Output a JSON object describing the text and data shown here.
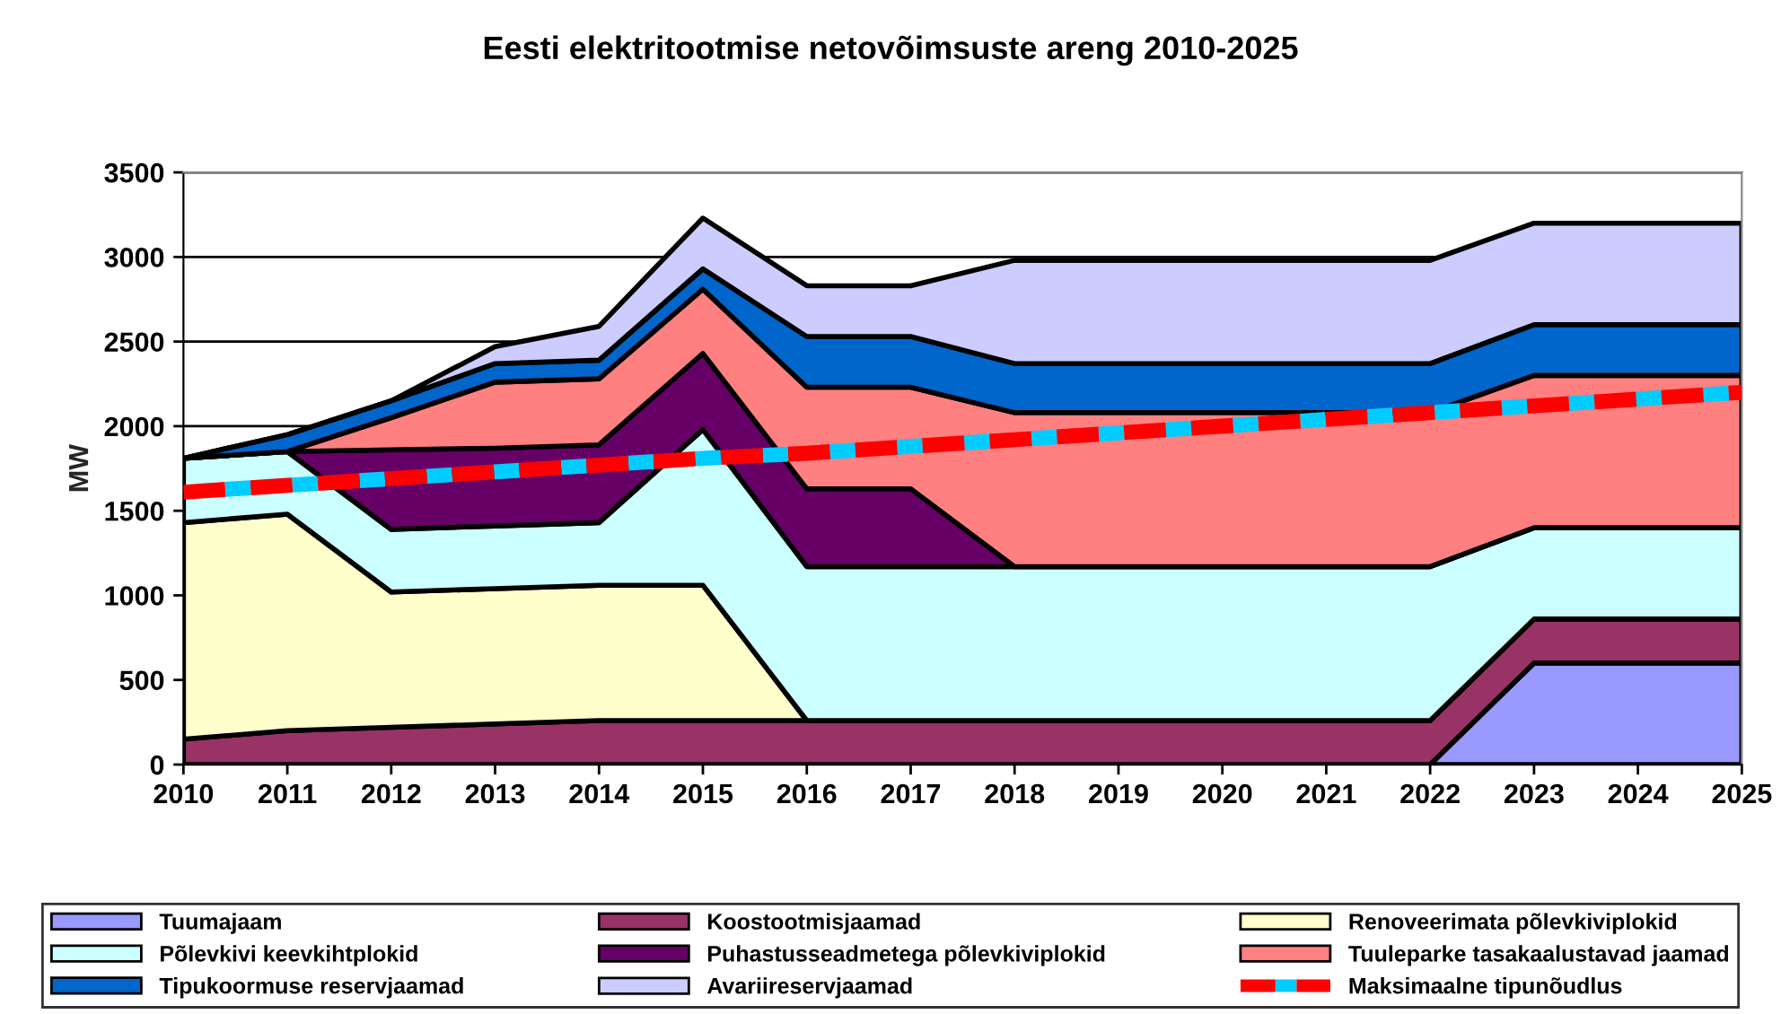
{
  "chart_data": {
    "type": "area",
    "stacked": true,
    "title": "Eesti elektritootmise netovõimsuste areng 2010-2025",
    "ylabel": "MW",
    "x": [
      2010,
      2011,
      2012,
      2013,
      2014,
      2015,
      2016,
      2017,
      2018,
      2019,
      2020,
      2021,
      2022,
      2023,
      2024,
      2025
    ],
    "xlim": [
      2010,
      2025
    ],
    "xticks": [
      2010,
      2011,
      2012,
      2013,
      2014,
      2015,
      2016,
      2017,
      2018,
      2019,
      2020,
      2021,
      2022,
      2023,
      2024,
      2025
    ],
    "ylim": [
      0,
      3500
    ],
    "yticks": [
      0,
      500,
      1000,
      1500,
      2000,
      2500,
      3000,
      3500
    ],
    "grid": "y",
    "legend": "bottom",
    "series": [
      {
        "name": "Tuumajaam",
        "color": "#9999ff",
        "values": [
          0,
          0,
          0,
          0,
          0,
          0,
          0,
          0,
          0,
          0,
          0,
          0,
          0,
          600,
          600,
          600
        ]
      },
      {
        "name": "Koostootmisjaamad",
        "color": "#993366",
        "values": [
          150,
          200,
          220,
          240,
          260,
          260,
          260,
          260,
          260,
          260,
          260,
          260,
          260,
          260,
          260,
          260
        ]
      },
      {
        "name": "Renoveerimata põlevkiviplokid",
        "color": "#ffffcc",
        "values": [
          1280,
          1280,
          800,
          800,
          800,
          800,
          0,
          0,
          0,
          0,
          0,
          0,
          0,
          0,
          0,
          0
        ]
      },
      {
        "name": "Põlevkivi keevkihtplokid",
        "color": "#ccffff",
        "values": [
          380,
          370,
          370,
          370,
          370,
          920,
          910,
          910,
          910,
          910,
          910,
          910,
          910,
          540,
          540,
          540
        ]
      },
      {
        "name": "Puhastusseadmetega põlevkiviplokid",
        "color": "#660066",
        "values": [
          0,
          0,
          470,
          460,
          460,
          450,
          460,
          460,
          0,
          0,
          0,
          0,
          0,
          0,
          0,
          0
        ]
      },
      {
        "name": "Tuuleparke tasakaalustavad jaamad",
        "color": "#ff8080",
        "values": [
          0,
          0,
          190,
          390,
          390,
          380,
          600,
          600,
          910,
          910,
          910,
          910,
          910,
          900,
          900,
          900
        ]
      },
      {
        "name": "Tipukoormuse reservjaamad",
        "color": "#0066cc",
        "values": [
          0,
          100,
          100,
          110,
          110,
          120,
          300,
          300,
          290,
          290,
          290,
          290,
          290,
          300,
          300,
          300
        ]
      },
      {
        "name": "Avariireservjaamad",
        "color": "#ccccff",
        "values": [
          0,
          0,
          0,
          100,
          200,
          300,
          300,
          300,
          610,
          610,
          610,
          610,
          610,
          600,
          600,
          600
        ]
      },
      {
        "name": "Maksimaalne tipunõudlus",
        "type": "line",
        "color": "#ff0000",
        "line_style": "dashed",
        "values": [
          1610,
          1650,
          1690,
          1730,
          1770,
          1810,
          1840,
          1880,
          1920,
          1960,
          2000,
          2040,
          2080,
          2120,
          2160,
          2200
        ]
      }
    ]
  }
}
